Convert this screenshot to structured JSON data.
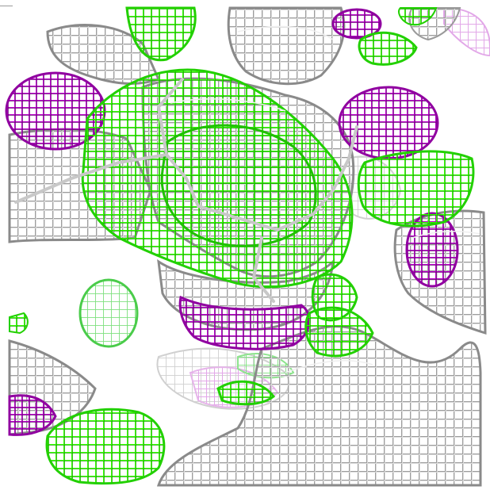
{
  "scene": {
    "type": "electron-density-mesh-render",
    "background_color": "#ffffff",
    "mesh_colors": {
      "gray_mesh": "#9c9c9c",
      "gray_mesh_light": "#d2d2d2",
      "green_mesh": "#33ff00",
      "green_mesh_pale": "#88f088",
      "magenta_mesh": "#b000c0",
      "magenta_mesh_pale": "#e2a8e8"
    },
    "icons": [
      "mesh-blob"
    ]
  }
}
